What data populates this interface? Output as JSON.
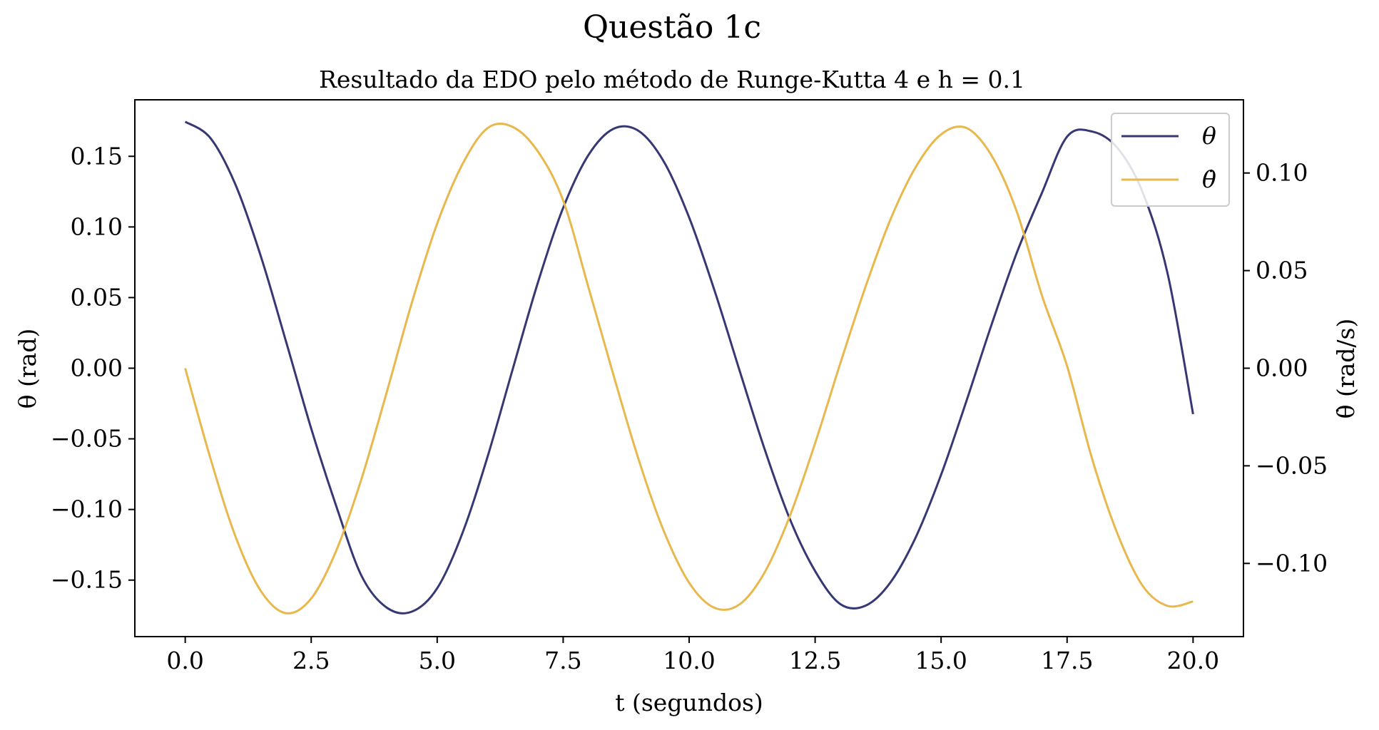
{
  "chart_data": {
    "type": "line",
    "title": "Questão 1c",
    "subtitle": "Resultado da EDO pelo método de Runge-Kutta 4 e h = 0.1",
    "xlabel": "t (segundos)",
    "ylabel_left": "θ (rad)",
    "ylabel_right": "θ̇ (rad/s)",
    "xlim": [
      -1.0,
      21.0
    ],
    "ylim_left": [
      -0.19,
      0.19
    ],
    "ylim_right": [
      -0.1375,
      0.1375
    ],
    "x_ticks": [
      0.0,
      2.5,
      5.0,
      7.5,
      10.0,
      12.5,
      15.0,
      17.5,
      20.0
    ],
    "x_tick_labels": [
      "0.0",
      "2.5",
      "5.0",
      "7.5",
      "10.0",
      "12.5",
      "15.0",
      "17.5",
      "20.0"
    ],
    "y_left_ticks": [
      0.15,
      0.1,
      0.05,
      0.0,
      -0.05,
      -0.1,
      -0.15
    ],
    "y_left_tick_labels": [
      "0.15",
      "0.10",
      "0.05",
      "0.00",
      "−0.05",
      "−0.10",
      "−0.15"
    ],
    "y_right_ticks": [
      0.1,
      0.05,
      0.0,
      -0.05,
      -0.1
    ],
    "y_right_tick_labels": [
      "0.10",
      "0.05",
      "0.00",
      "−0.05",
      "−0.10"
    ],
    "grid": false,
    "legend_position": "top-right",
    "x": [
      0.0,
      0.5,
      1.0,
      1.5,
      2.0,
      2.5,
      3.0,
      3.5,
      4.0,
      4.5,
      5.0,
      5.5,
      6.0,
      6.5,
      7.0,
      7.5,
      8.0,
      8.5,
      9.0,
      9.5,
      10.0,
      10.5,
      11.0,
      11.5,
      12.0,
      12.5,
      13.0,
      13.5,
      14.0,
      14.5,
      15.0,
      15.5,
      16.0,
      16.5,
      17.0,
      17.5,
      18.0,
      18.5,
      19.0,
      19.5,
      20.0
    ],
    "series": [
      {
        "name": "θ",
        "axis": "left",
        "color": "#363873",
        "values": [
          0.1745,
          0.1629,
          0.1297,
          0.0793,
          0.019,
          -0.0427,
          -0.0979,
          -0.1471,
          -0.1695,
          -0.1723,
          -0.1558,
          -0.1169,
          -0.0626,
          -0.0005,
          0.0608,
          0.1135,
          0.1508,
          0.1695,
          0.1679,
          0.1461,
          0.1067,
          0.0554,
          -0.0015,
          -0.0576,
          -0.1069,
          -0.1436,
          -0.167,
          -0.1681,
          -0.1514,
          -0.1194,
          -0.0754,
          -0.0235,
          0.0307,
          0.0815,
          0.1241,
          0.1639,
          0.1675,
          0.1559,
          0.1245,
          0.0662,
          -0.0325
        ]
      },
      {
        "name": "θ̇",
        "axis": "right",
        "color": "#e8b84d",
        "values": [
          0.0,
          -0.0462,
          -0.0864,
          -0.1141,
          -0.1255,
          -0.118,
          -0.0933,
          -0.0565,
          -0.0122,
          0.0338,
          0.0741,
          0.1044,
          0.123,
          0.1236,
          0.111,
          0.0859,
          0.0416,
          -0.0036,
          -0.047,
          -0.0836,
          -0.1099,
          -0.1227,
          -0.121,
          -0.1045,
          -0.0756,
          -0.0384,
          0.0025,
          0.0417,
          0.0765,
          0.1032,
          0.1198,
          0.1231,
          0.109,
          0.0804,
          0.0373,
          0.0011,
          -0.0467,
          -0.0848,
          -0.1115,
          -0.1218,
          -0.1195
        ]
      }
    ]
  }
}
